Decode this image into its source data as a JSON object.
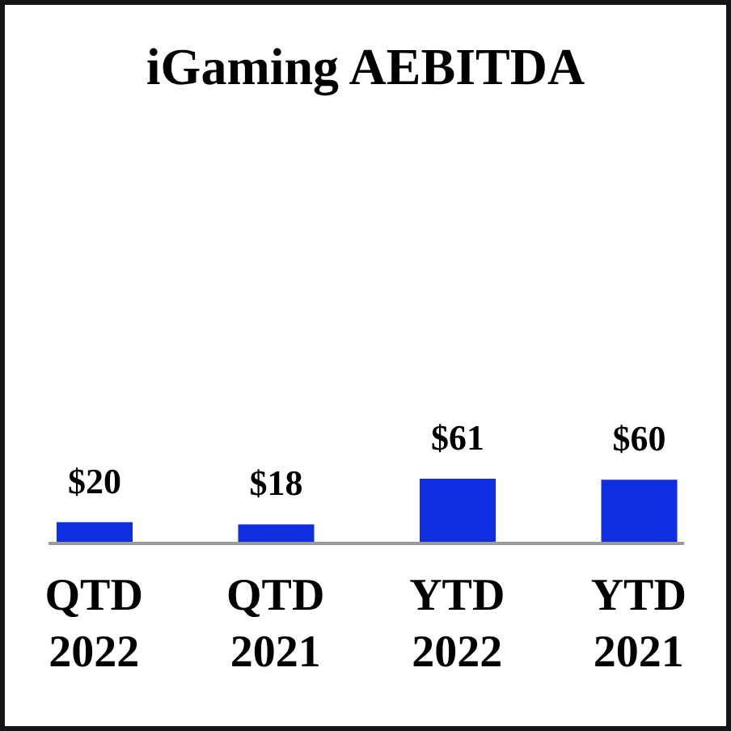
{
  "chart_data": {
    "type": "bar",
    "title": "iGaming AEBITDA",
    "categories": [
      "QTD 2022",
      "QTD 2021",
      "YTD 2022",
      "YTD 2021"
    ],
    "values": [
      20,
      18,
      61,
      60
    ],
    "color": "#0f2fe0",
    "value_labels": [
      "$20",
      "$18",
      "$61",
      "$60"
    ]
  }
}
